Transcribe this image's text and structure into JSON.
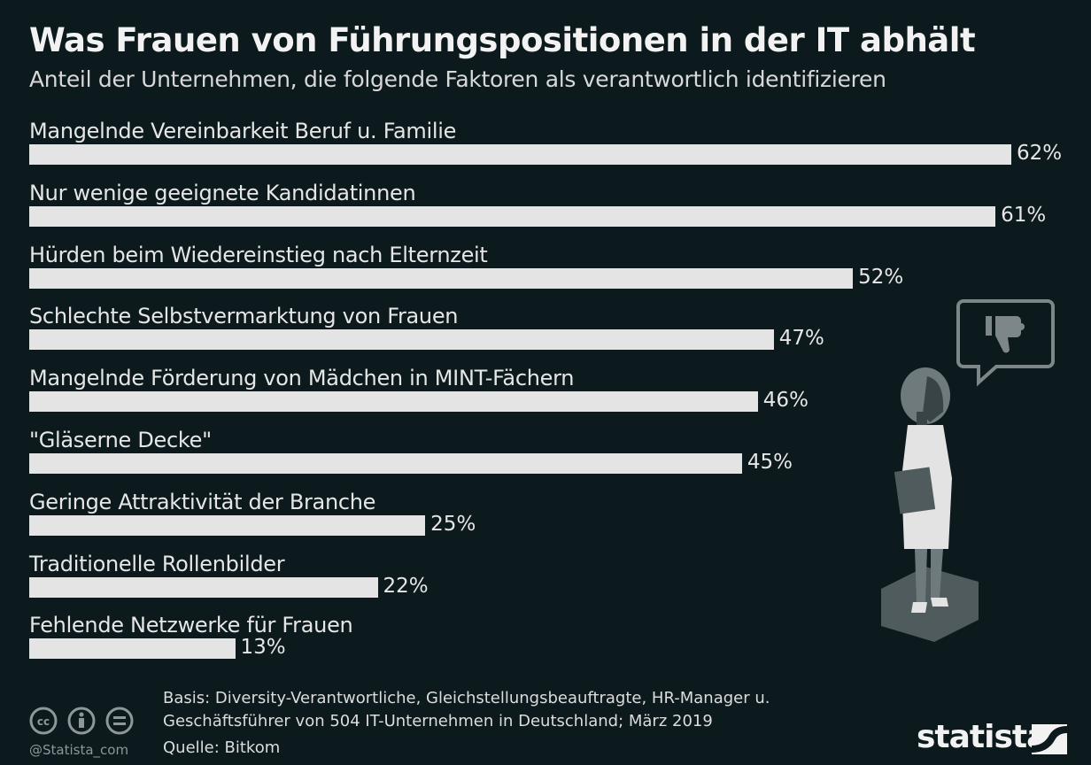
{
  "title": "Was Frauen von Führungspositionen in der IT abhält",
  "subtitle": "Anteil der Unternehmen, die folgende Faktoren als verantwortlich identifizieren",
  "chart_data": {
    "type": "bar",
    "orientation": "horizontal",
    "categories": [
      "Mangelnde Vereinbarkeit Beruf u. Familie",
      "Nur wenige geeignete Kandidatinnen",
      "Hürden beim Wiedereinstieg nach Elternzeit",
      "Schlechte Selbstvermarktung von Frauen",
      "Mangelnde Förderung von Mädchen in MINT-Fächern",
      "\"Gläserne Decke\"",
      "Geringe Attraktivität der Branche",
      "Traditionelle Rollenbilder",
      "Fehlende Netzwerke für Frauen"
    ],
    "values": [
      62,
      61,
      52,
      47,
      46,
      45,
      25,
      22,
      13
    ],
    "value_labels": [
      "62%",
      "61%",
      "52%",
      "47%",
      "46%",
      "45%",
      "25%",
      "22%",
      "13%"
    ],
    "unit": "%",
    "grid": false,
    "bar_color": "#e4e4e4"
  },
  "footer": {
    "basis": "Basis: Diversity-Verantwortliche, Gleichstellungsbeauftragte, HR-Manager u. Geschäftsführer von 504 IT-Unternehmen in Deutschland; März 2019",
    "source": "Quelle: Bitkom",
    "handle": "@Statista_com",
    "logo": "statista",
    "license_icons": [
      "cc-icon",
      "attribution-icon",
      "no-derivatives-icon"
    ]
  },
  "illustration": {
    "icon": "thumbs-down-icon",
    "figure": "businesswoman"
  },
  "colors": {
    "background": "#0c191d",
    "bar": "#e4e4e4",
    "text": "#e6e6e6"
  }
}
